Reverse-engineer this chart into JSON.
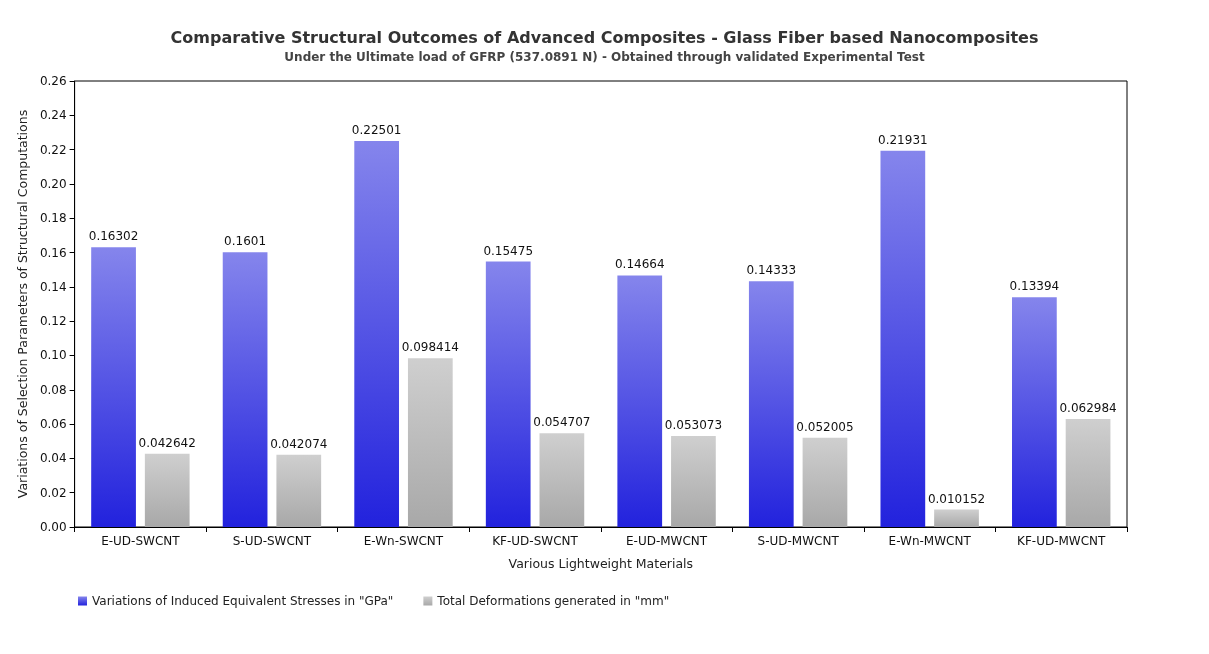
{
  "chart_data": {
    "type": "bar",
    "title": "Comparative Structural Outcomes of Advanced Composites - Glass Fiber based Nanocomposites",
    "subtitle": "Under the Ultimate load of GFRP (537.0891 N) - Obtained through validated Experimental Test",
    "xlabel": "Various Lightweight Materials",
    "ylabel": "Variations of Selection Parameters of Structural Computations",
    "categories": [
      "E-UD-SWCNT",
      "S-UD-SWCNT",
      "E-Wn-SWCNT",
      "KF-UD-SWCNT",
      "E-UD-MWCNT",
      "S-UD-MWCNT",
      "E-Wn-MWCNT",
      "KF-UD-MWCNT"
    ],
    "series": [
      {
        "name": "Variations of Induced Equivalent Stresses in \"GPa\"",
        "color": "#2222dd",
        "values": [
          0.16302,
          0.1601,
          0.22501,
          0.15475,
          0.14664,
          0.14333,
          0.21931,
          0.13394
        ]
      },
      {
        "name": "Total Deformations generated in \"mm\"",
        "color": "#a8a8a8",
        "values": [
          0.042642,
          0.042074,
          0.098414,
          0.054707,
          0.053073,
          0.052005,
          0.010152,
          0.062984
        ]
      }
    ],
    "ylim": [
      0,
      0.26
    ],
    "yticks": [
      {
        "value": 0,
        "label": "0.00"
      },
      {
        "value": 0.02,
        "label": "0.02"
      },
      {
        "value": 0.04,
        "label": "0.04"
      },
      {
        "value": 0.06,
        "label": "0.06"
      },
      {
        "value": 0.08,
        "label": "0.08"
      },
      {
        "value": 0.1,
        "label": "0.10"
      },
      {
        "value": 0.12,
        "label": "0.12"
      },
      {
        "value": 0.14,
        "label": "0.14"
      },
      {
        "value": 0.16,
        "label": "0.16"
      },
      {
        "value": 0.18,
        "label": "0.18"
      },
      {
        "value": 0.2,
        "label": "0.20"
      },
      {
        "value": 0.22,
        "label": "0.22"
      },
      {
        "value": 0.24,
        "label": "0.24"
      },
      {
        "value": 0.26,
        "label": "0.26"
      }
    ],
    "data_labels": true,
    "grid": false,
    "legend": "bottom left"
  }
}
